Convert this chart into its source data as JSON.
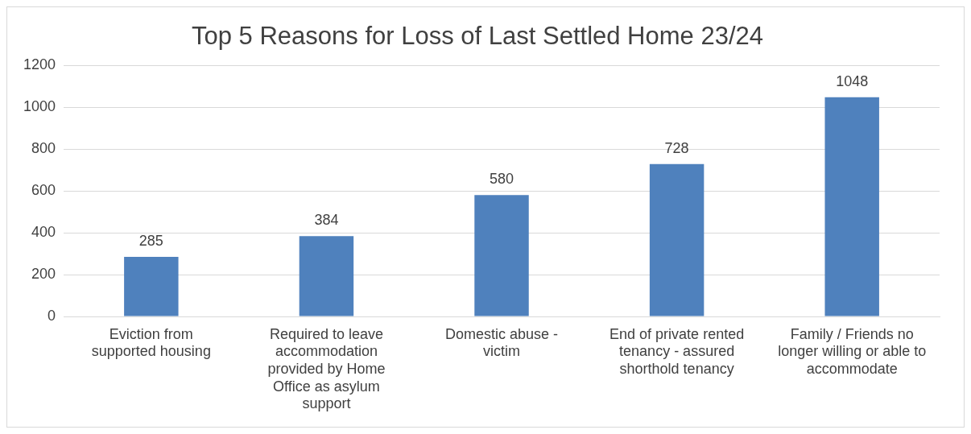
{
  "chart_data": {
    "type": "bar",
    "title": "Top 5 Reasons for Loss of Last Settled Home 23/24",
    "categories": [
      "Eviction from supported housing",
      "Required to leave accommodation provided by Home Office as asylum support",
      "Domestic abuse - victim",
      "End of private rented tenancy - assured shorthold tenancy",
      "Family / Friends no longer willing or able to accommodate"
    ],
    "values": [
      285,
      384,
      580,
      728,
      1048
    ],
    "color": "#4f81bd",
    "ylim": [
      0,
      1200
    ],
    "yticks": [
      0,
      200,
      400,
      600,
      800,
      1000,
      1200
    ],
    "grid": "y",
    "data_labels": true,
    "legend": false
  }
}
